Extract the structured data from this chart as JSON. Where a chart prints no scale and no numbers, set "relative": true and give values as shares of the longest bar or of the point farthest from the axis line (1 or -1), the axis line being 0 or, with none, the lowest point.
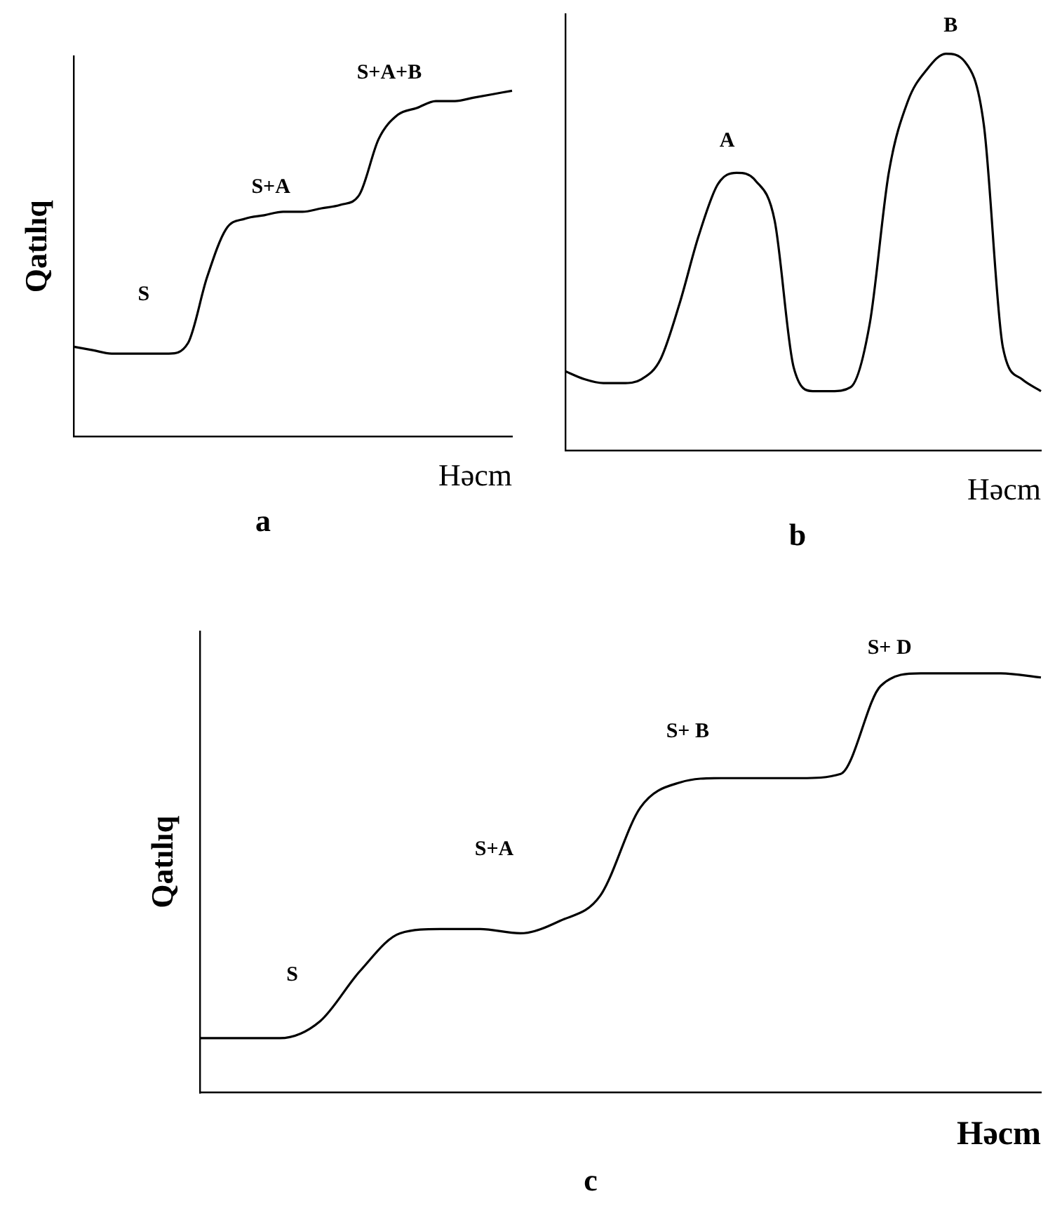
{
  "chart_data": [
    {
      "type": "line",
      "title": "a",
      "xlabel": "Həcm",
      "ylabel": "Qatılıq",
      "relative": true,
      "marker": "none",
      "color": "#000000",
      "annotations": [
        "S",
        "S+A",
        "S+A+B"
      ],
      "categories": [
        null,
        null,
        null,
        null,
        null,
        null,
        null,
        null,
        null,
        null,
        null,
        null,
        null,
        null,
        null,
        null,
        null,
        null,
        null,
        null,
        null,
        null,
        null,
        null
      ],
      "values": [
        0.26,
        0.25,
        0.24,
        0.24,
        0.24,
        0.24,
        0.27,
        0.46,
        0.6,
        0.63,
        0.64,
        0.65,
        0.65,
        0.66,
        0.67,
        0.7,
        0.86,
        0.93,
        0.95,
        0.97,
        0.97,
        0.98,
        0.99,
        1
      ]
    },
    {
      "type": "line",
      "title": "b",
      "xlabel": "Həcm",
      "relative": true,
      "marker": "none",
      "color": "#000000",
      "annotations": [
        "A",
        "B"
      ],
      "categories": [
        null,
        null,
        null,
        null,
        null,
        null,
        null,
        null,
        null,
        null,
        null,
        null,
        null,
        null,
        null,
        null,
        null,
        null,
        null,
        null,
        null,
        null,
        null,
        null,
        null,
        null
      ],
      "values": [
        0.2,
        0.18,
        0.17,
        0.17,
        0.18,
        0.23,
        0.37,
        0.54,
        0.67,
        0.7,
        0.68,
        0.58,
        0.21,
        0.15,
        0.15,
        0.16,
        0.32,
        0.7,
        0.88,
        0.96,
        1,
        0.98,
        0.82,
        0.26,
        0.18,
        0.15
      ]
    },
    {
      "type": "line",
      "title": "c",
      "xlabel": "Həcm",
      "ylabel": "Qatılıq",
      "relative": true,
      "marker": "none",
      "color": "#000000",
      "annotations": [
        "S",
        "S+A",
        "S+ B",
        "S+ D"
      ],
      "categories": [
        null,
        null,
        null,
        null,
        null,
        null,
        null,
        null,
        null,
        null,
        null,
        null,
        null,
        null,
        null,
        null,
        null,
        null,
        null,
        null,
        null,
        null
      ],
      "values": [
        0.13,
        0.13,
        0.13,
        0.17,
        0.29,
        0.38,
        0.39,
        0.39,
        0.38,
        0.41,
        0.47,
        0.68,
        0.74,
        0.75,
        0.75,
        0.75,
        0.76,
        0.97,
        1,
        1,
        1,
        0.99
      ]
    }
  ]
}
